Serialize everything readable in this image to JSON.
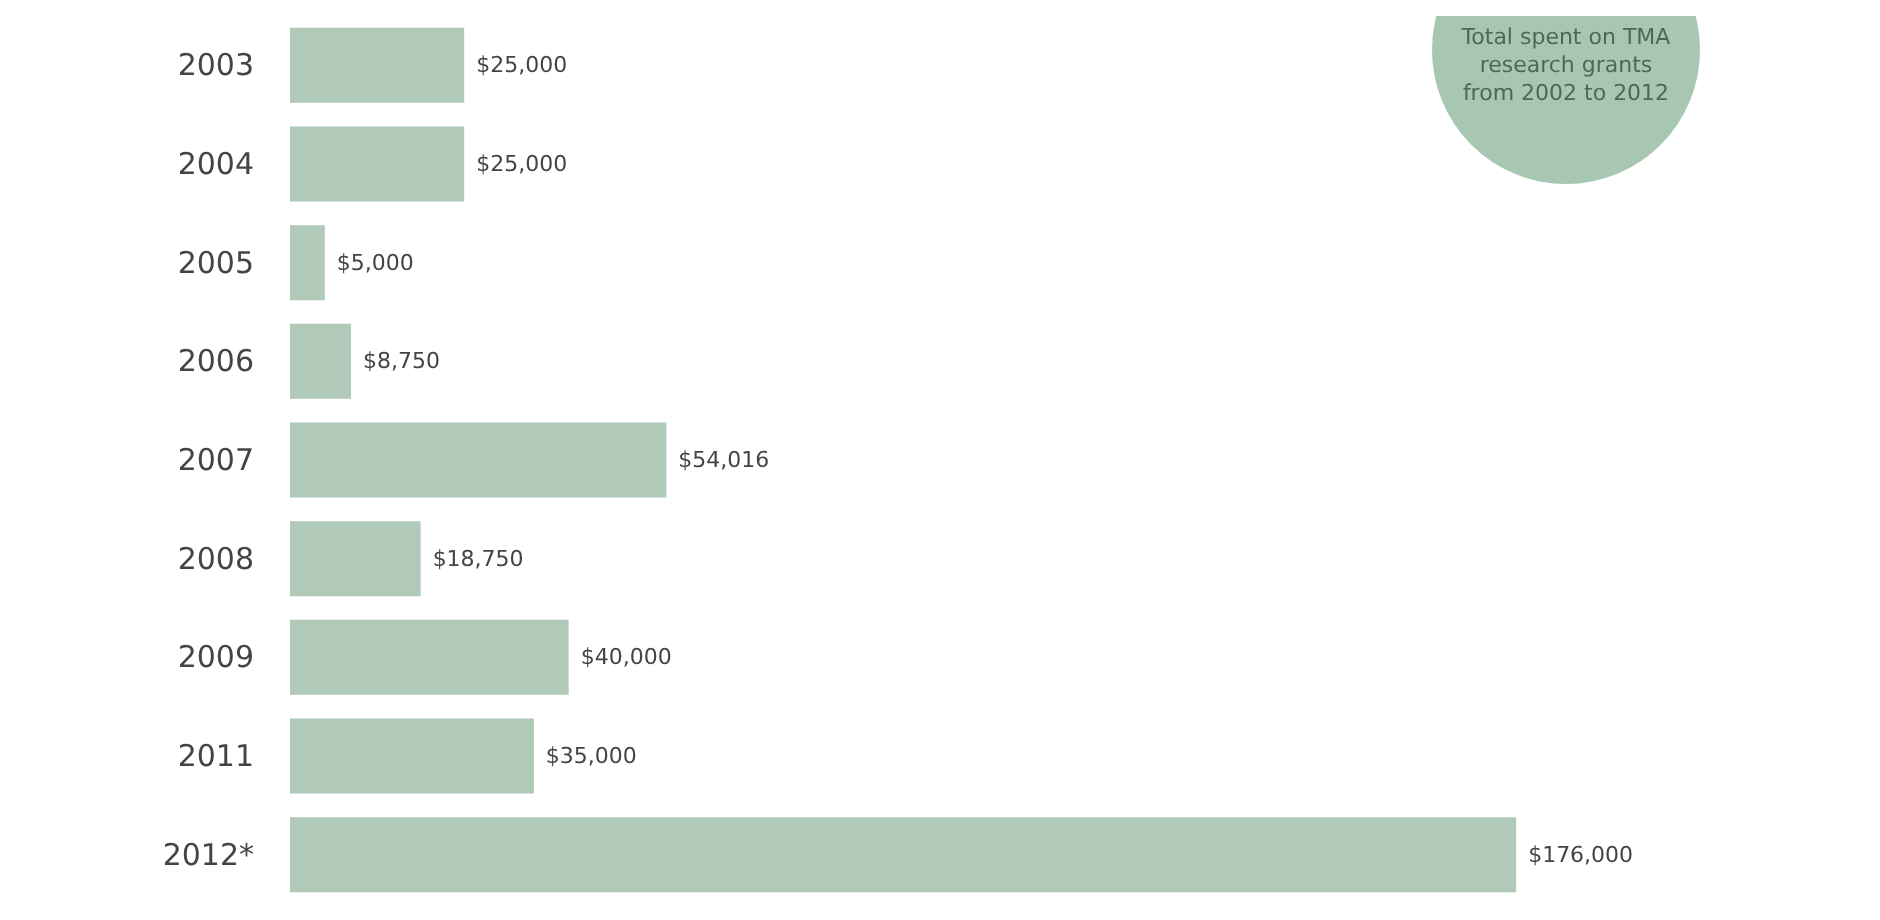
{
  "chart_data": {
    "type": "bar",
    "orientation": "horizontal",
    "categories": [
      "2003",
      "2004",
      "2005",
      "2006",
      "2007",
      "2008",
      "2009",
      "2011",
      "2012*"
    ],
    "values": [
      25000,
      25000,
      5000,
      8750,
      54016,
      18750,
      40000,
      35000,
      176000
    ],
    "value_labels": [
      "$25,000",
      "$25,000",
      "$5,000",
      "$8,750",
      "$54,016",
      "$18,750",
      "$40,000",
      "$35,000",
      "$176,000"
    ],
    "color": "#b0c9b8",
    "annotations": [
      "Total spent on TMA research grants from 2002 to 2012"
    ]
  }
}
